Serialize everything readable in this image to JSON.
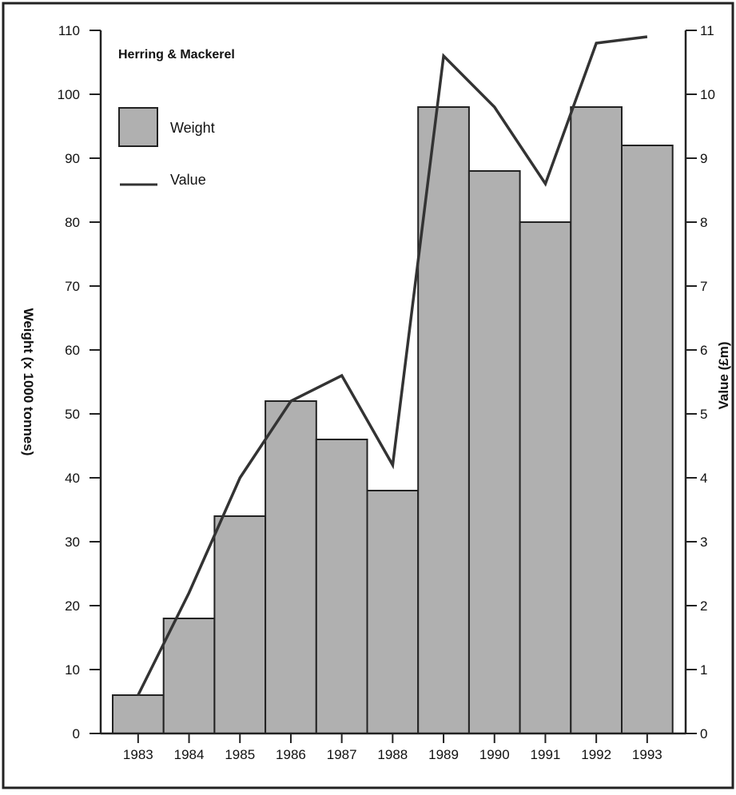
{
  "chart_data": {
    "type": "bar",
    "title": "Herring & Mackerel",
    "categories": [
      "1983",
      "1984",
      "1985",
      "1986",
      "1987",
      "1988",
      "1989",
      "1990",
      "1991",
      "1992",
      "1993"
    ],
    "series": [
      {
        "name": "Weight",
        "type": "bar",
        "axis": "left",
        "values": [
          6,
          18,
          34,
          52,
          46,
          38,
          98,
          88,
          80,
          98,
          92
        ],
        "color": "#b0b0b0"
      },
      {
        "name": "Value",
        "type": "line",
        "axis": "right",
        "values": [
          0.6,
          2.2,
          4.0,
          5.2,
          5.6,
          4.2,
          10.6,
          9.8,
          8.6,
          10.8,
          10.9
        ],
        "color": "#333333"
      }
    ],
    "ylabel": "Weight (x 1000 tonnes)",
    "ylabel_right": "Value (£m)",
    "xlabel": "",
    "ylim": [
      0,
      110
    ],
    "ylim_right": [
      0,
      11
    ],
    "yticks": [
      0,
      10,
      20,
      30,
      40,
      50,
      60,
      70,
      80,
      90,
      100,
      110
    ],
    "yticks_right": [
      0,
      1,
      2,
      3,
      4,
      5,
      6,
      7,
      8,
      9,
      10,
      11
    ],
    "legend": {
      "position": "top-left",
      "entries": [
        {
          "label": "Weight",
          "symbol": "box"
        },
        {
          "label": "Value",
          "symbol": "line"
        }
      ]
    },
    "grid": false
  }
}
